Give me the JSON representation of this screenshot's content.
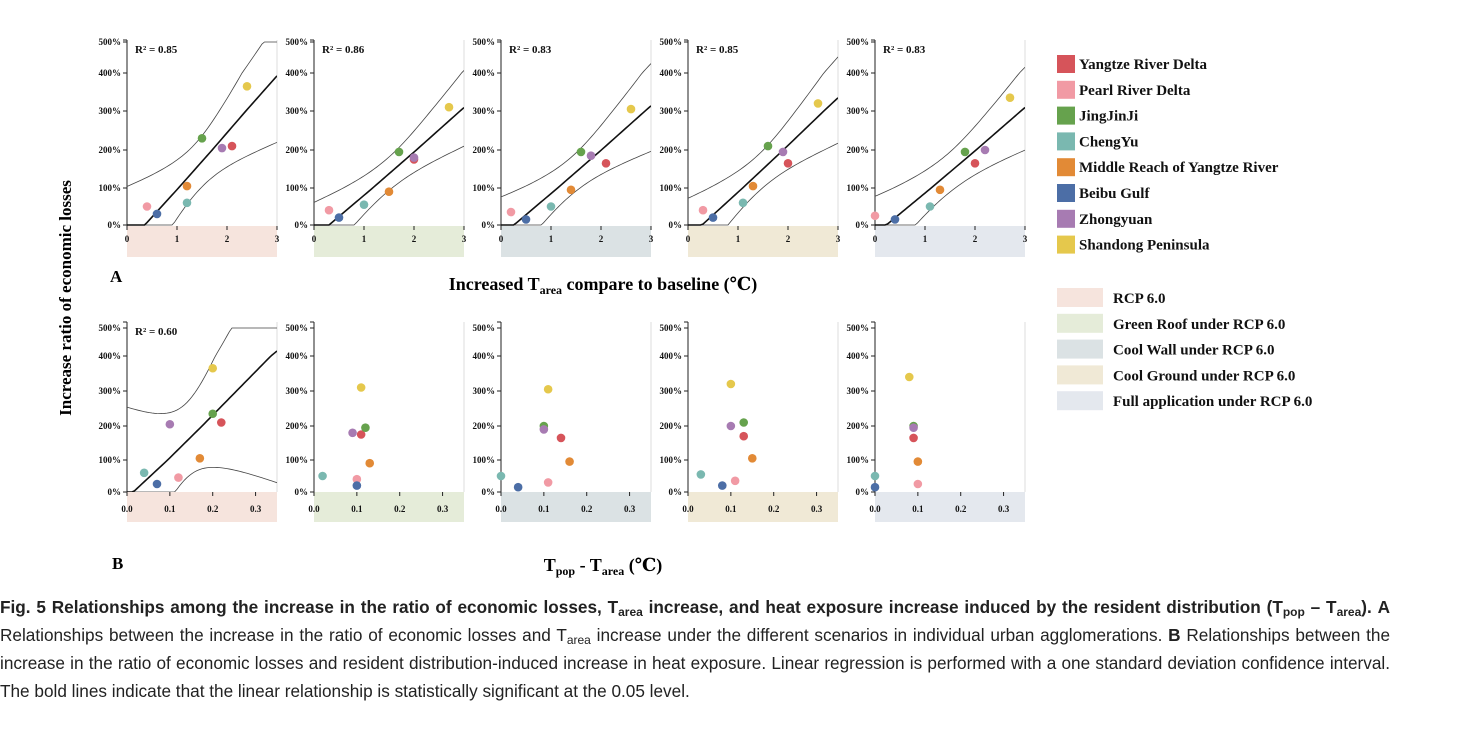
{
  "figure": {
    "ylabel": "Increase ratio of economic losses",
    "panel_a_label": "A",
    "panel_b_label": "B",
    "xlabel_a": {
      "pre": "Increased T",
      "sub": "area",
      "post": " compare to baseline (℃)"
    },
    "xlabel_b": {
      "t1": "T",
      "s1": "pop",
      "mid": " - T",
      "s2": "area",
      "post": " (℃)"
    },
    "y_tick_labels": [
      "0%",
      "100%",
      "200%",
      "300%",
      "400%",
      "500%"
    ],
    "x_tick_labels_a": [
      "0",
      "1",
      "2",
      "3"
    ],
    "x_tick_labels_b": [
      "0.0",
      "0.1",
      "0.2",
      "0.3"
    ]
  },
  "legend": {
    "cities": [
      {
        "name": "Yangtze River Delta",
        "color": "#d6545a"
      },
      {
        "name": "Pearl River Delta",
        "color": "#f19aa4"
      },
      {
        "name": "JingJinJi",
        "color": "#66a24d"
      },
      {
        "name": "ChengYu",
        "color": "#7ab8b0"
      },
      {
        "name": "Middle Reach of Yangtze River",
        "color": "#e28a36"
      },
      {
        "name": "Beibu Gulf",
        "color": "#4c6ea6"
      },
      {
        "name": "Zhongyuan",
        "color": "#a77bb2"
      },
      {
        "name": "Shandong Peninsula",
        "color": "#e5c84c"
      }
    ],
    "scenarios": [
      {
        "name": "RCP 6.0",
        "color": "#f6e4dd"
      },
      {
        "name": "Green Roof under RCP 6.0",
        "color": "#e5ecd9"
      },
      {
        "name": "Cool Wall under RCP 6.0",
        "color": "#dbe2e4"
      },
      {
        "name": "Cool Ground under RCP 6.0",
        "color": "#f0e9d6"
      },
      {
        "name": "Full application under RCP 6.0",
        "color": "#e4e8ee"
      }
    ]
  },
  "chart_data": [
    {
      "type": "scatter",
      "panel": "A",
      "scenario": "RCP 6.0",
      "r2": "R² = 0.85",
      "significant": true,
      "xlim": [
        0,
        3
      ],
      "ylim": [
        0,
        500
      ],
      "x": [
        2.1,
        0.4,
        1.5,
        1.2,
        1.2,
        0.6,
        1.9,
        2.4
      ],
      "y": [
        210,
        50,
        230,
        60,
        105,
        30,
        205,
        365
      ]
    },
    {
      "type": "scatter",
      "panel": "A",
      "scenario": "Green Roof under RCP 6.0",
      "r2": "R² = 0.86",
      "significant": true,
      "xlim": [
        0,
        3
      ],
      "ylim": [
        0,
        500
      ],
      "x": [
        2.0,
        0.3,
        1.7,
        1.0,
        1.5,
        0.5,
        2.0,
        2.7
      ],
      "y": [
        175,
        40,
        195,
        55,
        90,
        20,
        180,
        310
      ]
    },
    {
      "type": "scatter",
      "panel": "A",
      "scenario": "Cool Wall under RCP 6.0",
      "r2": "R² = 0.83",
      "significant": true,
      "xlim": [
        0,
        3
      ],
      "ylim": [
        0,
        500
      ],
      "x": [
        2.1,
        0.2,
        1.6,
        1.0,
        1.4,
        0.5,
        1.8,
        2.6
      ],
      "y": [
        165,
        35,
        195,
        50,
        95,
        15,
        185,
        305
      ]
    },
    {
      "type": "scatter",
      "panel": "A",
      "scenario": "Cool Ground under RCP 6.0",
      "r2": "R² = 0.85",
      "significant": true,
      "xlim": [
        0,
        3
      ],
      "ylim": [
        0,
        500
      ],
      "x": [
        2.0,
        0.3,
        1.6,
        1.1,
        1.3,
        0.5,
        1.9,
        2.6
      ],
      "y": [
        165,
        40,
        210,
        60,
        105,
        20,
        195,
        320
      ]
    },
    {
      "type": "scatter",
      "panel": "A",
      "scenario": "Full application under RCP 6.0",
      "r2": "R² = 0.83",
      "significant": true,
      "xlim": [
        0,
        3
      ],
      "ylim": [
        0,
        500
      ],
      "x": [
        2.0,
        0.0,
        1.8,
        1.1,
        1.3,
        0.4,
        2.2,
        2.7
      ],
      "y": [
        165,
        25,
        195,
        50,
        95,
        15,
        200,
        335
      ]
    },
    {
      "type": "scatter",
      "panel": "B",
      "scenario": "RCP 6.0",
      "r2": "R² = 0.60",
      "significant": true,
      "xlim": [
        0,
        0.35
      ],
      "ylim": [
        0,
        500
      ],
      "x": [
        0.22,
        0.12,
        0.2,
        0.04,
        0.17,
        0.07,
        0.1,
        0.2
      ],
      "y": [
        210,
        45,
        235,
        60,
        105,
        25,
        205,
        365
      ]
    },
    {
      "type": "scatter",
      "panel": "B",
      "scenario": "Green Roof under RCP 6.0",
      "r2": "",
      "significant": false,
      "xlim": [
        0,
        0.35
      ],
      "ylim": [
        0,
        500
      ],
      "x": [
        0.11,
        0.1,
        0.12,
        0.02,
        0.13,
        0.1,
        0.09,
        0.11
      ],
      "y": [
        175,
        40,
        195,
        50,
        90,
        20,
        180,
        310
      ]
    },
    {
      "type": "scatter",
      "panel": "B",
      "scenario": "Cool Wall under RCP 6.0",
      "r2": "",
      "significant": false,
      "xlim": [
        0,
        0.35
      ],
      "ylim": [
        0,
        500
      ],
      "x": [
        0.14,
        0.11,
        0.1,
        0.0,
        0.16,
        0.04,
        0.1,
        0.11
      ],
      "y": [
        165,
        30,
        200,
        50,
        95,
        15,
        190,
        305
      ]
    },
    {
      "type": "scatter",
      "panel": "B",
      "scenario": "Cool Ground under RCP 6.0",
      "r2": "",
      "significant": false,
      "xlim": [
        0,
        0.35
      ],
      "ylim": [
        0,
        500
      ],
      "x": [
        0.13,
        0.11,
        0.13,
        0.03,
        0.15,
        0.08,
        0.1,
        0.1
      ],
      "y": [
        170,
        35,
        210,
        55,
        105,
        20,
        200,
        320
      ]
    },
    {
      "type": "scatter",
      "panel": "B",
      "scenario": "Full application under RCP 6.0",
      "r2": "",
      "significant": false,
      "xlim": [
        0,
        0.35
      ],
      "ylim": [
        0,
        500
      ],
      "x": [
        0.09,
        0.1,
        0.09,
        0.0,
        0.1,
        0.0,
        0.09,
        0.08
      ],
      "y": [
        165,
        25,
        200,
        50,
        95,
        15,
        195,
        340
      ]
    }
  ],
  "caption": {
    "fig": "Fig. 5",
    "t1": " Relationships among the increase in the ratio of economic losses, T",
    "s1": "area",
    "t2": " increase, and heat exposure increase induced by the resident distribution (T",
    "s2": "pop",
    "t3": " – T",
    "s3": "area",
    "t4": ").",
    "a": "A",
    "a_t1": " Relationships between the increase in the ratio of economic losses and T",
    "a_s1": "area",
    "a_t2": " increase under the different scenarios in individual urban agglomerations.",
    "b": "B",
    "b_t1": " Relationships between the increase in the ratio of economic losses and resident distribution-induced increase in heat exposure. Linear regression is performed with a one standard deviation confidence interval. The bold lines indicate that the linear relationship is statistically significant at the 0.05 level."
  }
}
